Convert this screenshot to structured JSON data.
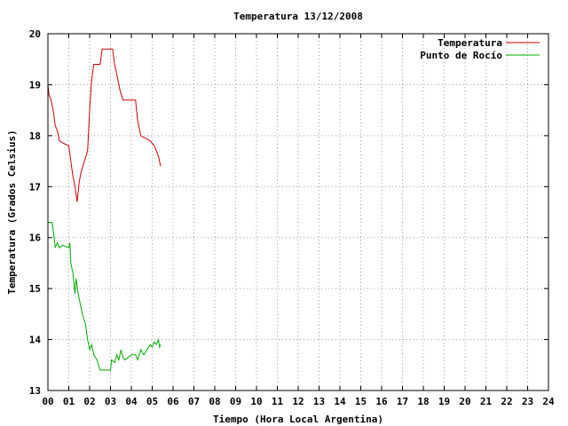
{
  "chart_data": {
    "type": "line",
    "title": "Temperatura 13/12/2008",
    "xlabel": "Tiempo (Hora Local Argentina)",
    "ylabel": "Temperatura (Grados Celsius)",
    "xlim": [
      0,
      24
    ],
    "ylim": [
      13,
      20
    ],
    "x_ticks": [
      "00",
      "01",
      "02",
      "03",
      "04",
      "05",
      "06",
      "07",
      "08",
      "09",
      "10",
      "11",
      "12",
      "13",
      "14",
      "15",
      "16",
      "17",
      "18",
      "19",
      "20",
      "21",
      "22",
      "23",
      "24"
    ],
    "y_ticks": [
      13,
      14,
      15,
      16,
      17,
      18,
      19,
      20
    ],
    "grid": true,
    "legend_position": "top-right",
    "series": [
      {
        "name": "Temperatura",
        "color": "#cc0000",
        "points": [
          [
            0.0,
            19.0
          ],
          [
            0.05,
            18.8
          ],
          [
            0.15,
            18.7
          ],
          [
            0.25,
            18.5
          ],
          [
            0.35,
            18.2
          ],
          [
            0.45,
            18.1
          ],
          [
            0.55,
            17.9
          ],
          [
            0.75,
            17.85
          ],
          [
            1.0,
            17.8
          ],
          [
            1.1,
            17.5
          ],
          [
            1.2,
            17.2
          ],
          [
            1.3,
            17.0
          ],
          [
            1.4,
            16.7
          ],
          [
            1.5,
            17.1
          ],
          [
            1.6,
            17.3
          ],
          [
            1.75,
            17.5
          ],
          [
            1.9,
            17.7
          ],
          [
            2.0,
            18.5
          ],
          [
            2.1,
            19.1
          ],
          [
            2.2,
            19.4
          ],
          [
            2.5,
            19.4
          ],
          [
            2.6,
            19.7
          ],
          [
            3.1,
            19.7
          ],
          [
            3.2,
            19.4
          ],
          [
            3.3,
            19.2
          ],
          [
            3.45,
            18.9
          ],
          [
            3.6,
            18.7
          ],
          [
            4.2,
            18.7
          ],
          [
            4.3,
            18.3
          ],
          [
            4.45,
            18.0
          ],
          [
            4.9,
            17.9
          ],
          [
            5.1,
            17.8
          ],
          [
            5.3,
            17.6
          ],
          [
            5.4,
            17.4
          ]
        ]
      },
      {
        "name": "Punto de Rocío",
        "color": "#00aa00",
        "points": [
          [
            0.0,
            16.3
          ],
          [
            0.2,
            16.3
          ],
          [
            0.3,
            16.0
          ],
          [
            0.35,
            15.8
          ],
          [
            0.45,
            15.9
          ],
          [
            0.55,
            15.8
          ],
          [
            0.7,
            15.85
          ],
          [
            1.0,
            15.8
          ],
          [
            1.05,
            15.9
          ],
          [
            1.1,
            15.5
          ],
          [
            1.2,
            15.3
          ],
          [
            1.3,
            14.9
          ],
          [
            1.35,
            15.2
          ],
          [
            1.45,
            14.9
          ],
          [
            1.55,
            14.7
          ],
          [
            1.65,
            14.5
          ],
          [
            1.8,
            14.3
          ],
          [
            1.9,
            14.0
          ],
          [
            2.0,
            13.8
          ],
          [
            2.1,
            13.9
          ],
          [
            2.2,
            13.7
          ],
          [
            2.35,
            13.6
          ],
          [
            2.5,
            13.4
          ],
          [
            3.0,
            13.4
          ],
          [
            3.05,
            13.6
          ],
          [
            3.2,
            13.55
          ],
          [
            3.3,
            13.7
          ],
          [
            3.4,
            13.6
          ],
          [
            3.5,
            13.8
          ],
          [
            3.6,
            13.65
          ],
          [
            3.7,
            13.6
          ],
          [
            4.0,
            13.7
          ],
          [
            4.2,
            13.7
          ],
          [
            4.3,
            13.6
          ],
          [
            4.45,
            13.8
          ],
          [
            4.6,
            13.7
          ],
          [
            4.75,
            13.8
          ],
          [
            4.9,
            13.9
          ],
          [
            5.0,
            13.85
          ],
          [
            5.1,
            13.95
          ],
          [
            5.2,
            13.9
          ],
          [
            5.3,
            14.0
          ],
          [
            5.35,
            13.85
          ],
          [
            5.4,
            13.9
          ]
        ]
      }
    ]
  }
}
